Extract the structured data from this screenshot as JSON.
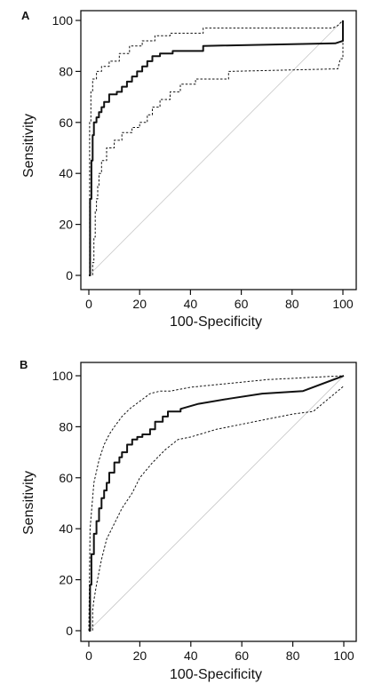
{
  "chart_data": [
    {
      "type": "line",
      "panel_label": "A",
      "xlabel": "100-Specificity",
      "ylabel": "Sensitivity",
      "xlim": [
        0,
        100
      ],
      "ylim": [
        0,
        100
      ],
      "xticks": [
        0,
        20,
        40,
        60,
        80,
        100
      ],
      "yticks": [
        0,
        20,
        40,
        60,
        80,
        100
      ],
      "grid": false,
      "series": [
        {
          "role": "roc",
          "style": "solid",
          "x": [
            0,
            0.5,
            0.5,
            1,
            1,
            1.5,
            1.5,
            2,
            2,
            3,
            3,
            4,
            4,
            5,
            5,
            6,
            6,
            8,
            8,
            11,
            11,
            13,
            13,
            15,
            15,
            17,
            17,
            19,
            19,
            21,
            21,
            23,
            23,
            25,
            25,
            28,
            28,
            33,
            33,
            45,
            45,
            97,
            100,
            100
          ],
          "y": [
            0,
            0,
            30,
            30,
            45,
            45,
            55,
            55,
            60,
            60,
            62,
            62,
            64,
            64,
            66,
            66,
            68,
            68,
            71,
            71,
            72,
            72,
            74,
            74,
            76,
            76,
            78,
            78,
            80,
            80,
            82,
            82,
            84,
            84,
            86,
            86,
            87,
            87,
            88,
            88,
            90,
            91,
            92,
            100
          ]
        },
        {
          "role": "ci-upper",
          "style": "dashed",
          "x": [
            0,
            0.3,
            0.3,
            0.8,
            0.8,
            1.5,
            1.5,
            3,
            3,
            5,
            5,
            8,
            8,
            12,
            12,
            16,
            16,
            21,
            21,
            26,
            26,
            32,
            32,
            45,
            45,
            96,
            98,
            100
          ],
          "y": [
            0,
            0,
            60,
            60,
            72,
            72,
            77,
            77,
            80,
            80,
            82,
            82,
            84,
            84,
            87,
            87,
            90,
            90,
            92,
            92,
            94,
            94,
            95,
            95,
            97,
            97,
            98,
            100
          ]
        },
        {
          "role": "ci-lower",
          "style": "dashed",
          "x": [
            0,
            1.5,
            1.5,
            2,
            2,
            2.5,
            2.5,
            3,
            3,
            3.5,
            3.5,
            4,
            4,
            5,
            5,
            7,
            7,
            10,
            10,
            13,
            13,
            17,
            17,
            20,
            20,
            23,
            23,
            25,
            25,
            28,
            28,
            32,
            32,
            36,
            36,
            42,
            42,
            55,
            55,
            98,
            99,
            100,
            100
          ],
          "y": [
            0,
            0,
            5,
            5,
            15,
            15,
            25,
            25,
            30,
            30,
            35,
            35,
            40,
            40,
            45,
            45,
            50,
            50,
            53,
            53,
            56,
            56,
            58,
            58,
            60,
            60,
            63,
            63,
            66,
            66,
            69,
            69,
            72,
            72,
            75,
            75,
            77,
            77,
            80,
            81,
            85,
            85,
            100
          ]
        },
        {
          "role": "reference",
          "style": "thin-gray",
          "x": [
            0,
            100
          ],
          "y": [
            0,
            100
          ]
        }
      ]
    },
    {
      "type": "line",
      "panel_label": "B",
      "xlabel": "100-Specificity",
      "ylabel": "Sensitivity",
      "xlim": [
        0,
        100
      ],
      "ylim": [
        0,
        100
      ],
      "xticks": [
        0,
        20,
        40,
        60,
        80,
        100
      ],
      "yticks": [
        0,
        20,
        40,
        60,
        80,
        100
      ],
      "grid": false,
      "series": [
        {
          "role": "roc",
          "style": "solid",
          "x": [
            0,
            0.5,
            0.5,
            1,
            1,
            2,
            2,
            3,
            3,
            4,
            4,
            5,
            5,
            6,
            6,
            7,
            7,
            8,
            8,
            10,
            10,
            12,
            12,
            13,
            13,
            15,
            15,
            17,
            17,
            19,
            19,
            21,
            21,
            24,
            24,
            26,
            26,
            29,
            29,
            31,
            31,
            36,
            36,
            43,
            55,
            68,
            84,
            100
          ],
          "y": [
            0,
            0,
            18,
            18,
            30,
            30,
            38,
            38,
            43,
            43,
            48,
            48,
            52,
            52,
            55,
            55,
            58,
            58,
            62,
            62,
            66,
            66,
            68,
            68,
            70,
            70,
            73,
            73,
            75,
            75,
            76,
            76,
            77,
            77,
            79,
            79,
            82,
            82,
            84,
            84,
            86,
            86,
            87,
            89,
            91,
            93,
            94,
            100
          ]
        },
        {
          "role": "ci-upper",
          "style": "dashed",
          "x": [
            0,
            0.5,
            2,
            4,
            6,
            8,
            10,
            13,
            16,
            20,
            24,
            28,
            32,
            40,
            50,
            60,
            70,
            80,
            90,
            100
          ],
          "y": [
            0,
            40,
            58,
            67,
            73,
            77,
            80,
            84,
            87,
            90,
            93,
            94,
            94,
            95.5,
            96.5,
            97.5,
            98.5,
            99,
            99.5,
            100
          ]
        },
        {
          "role": "ci-lower",
          "style": "dashed",
          "x": [
            0,
            1.5,
            1.5,
            2,
            3,
            5,
            7,
            10,
            13,
            17,
            20,
            25,
            30,
            35,
            40,
            50,
            65,
            80,
            88,
            100
          ],
          "y": [
            0,
            0,
            8,
            12,
            18,
            28,
            36,
            42,
            48,
            54,
            60,
            66,
            71,
            75,
            76,
            79,
            82,
            85,
            86,
            96
          ]
        },
        {
          "role": "reference",
          "style": "thin-gray",
          "x": [
            0,
            100
          ],
          "y": [
            0,
            100
          ]
        }
      ]
    }
  ]
}
